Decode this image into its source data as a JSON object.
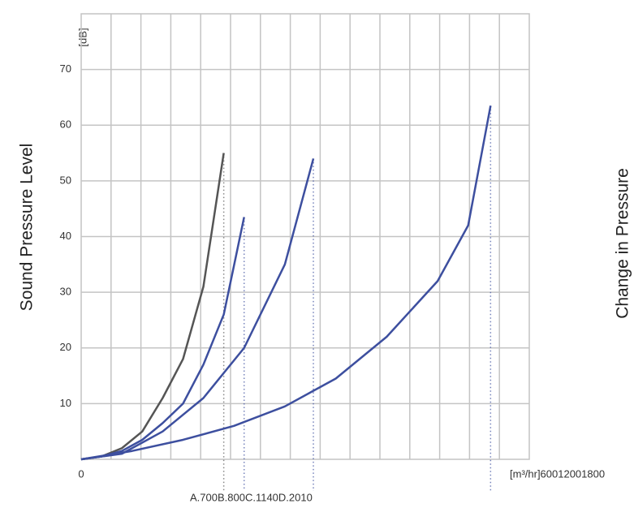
{
  "chart_data": {
    "type": "line",
    "y_label": "Sound Pressure Level",
    "y2_label": "Change in Pressure",
    "y_unit": "[dB]",
    "x_label": "[m³/hr]60012001800",
    "annotation": "A.700B.800C.1140D.2010",
    "xlim": [
      0,
      2200
    ],
    "xticks": [
      0
    ],
    "ylim": [
      0,
      80
    ],
    "yticks": [
      10,
      20,
      30,
      40,
      50,
      60,
      70
    ],
    "grid": true,
    "series": [
      {
        "color": "#555555",
        "x": [
          0,
          100,
          200,
          300,
          400,
          500,
          600,
          700
        ],
        "values": [
          0,
          0.5,
          2,
          5,
          11,
          18,
          31,
          55
        ]
      },
      {
        "color": "#3d4f9f",
        "x": [
          0,
          100,
          200,
          300,
          400,
          500,
          600,
          700,
          800
        ],
        "values": [
          0,
          0.5,
          1.5,
          3.5,
          6.5,
          10,
          17,
          26,
          43.5
        ]
      },
      {
        "color": "#3d4f9f",
        "x": [
          0,
          200,
          400,
          600,
          800,
          1000,
          1140
        ],
        "values": [
          0,
          1,
          5,
          11,
          20,
          35,
          54
        ]
      },
      {
        "color": "#3d4f9f",
        "x": [
          0,
          250,
          500,
          750,
          1000,
          1250,
          1500,
          1750,
          1900,
          2010
        ],
        "values": [
          0,
          1.5,
          3.5,
          6,
          9.5,
          14.5,
          22,
          32,
          42,
          63.5
        ]
      }
    ]
  }
}
